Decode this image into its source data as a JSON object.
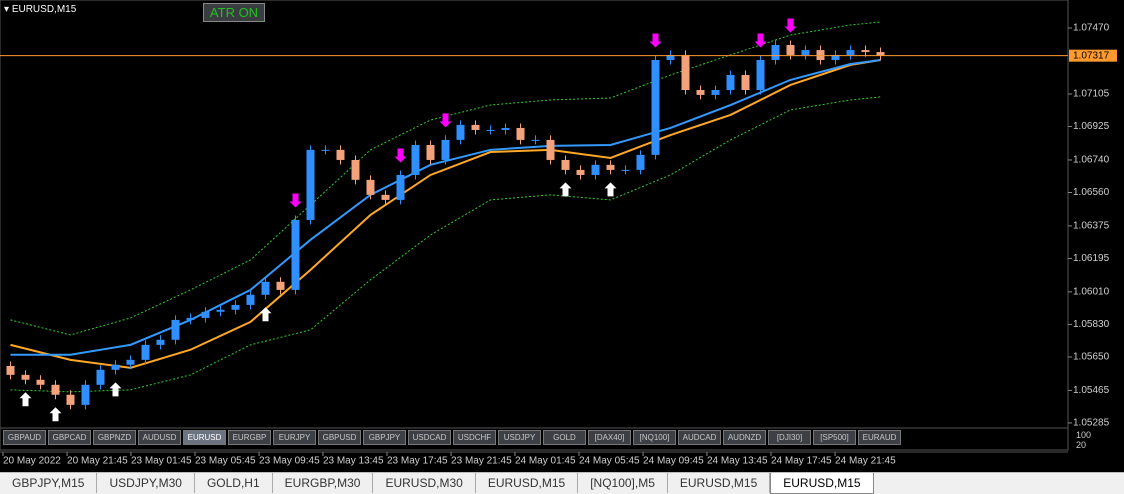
{
  "header": {
    "symbol": "EURUSD,M15",
    "button": "ATR ON"
  },
  "chart_data": {
    "type": "candlestick",
    "open": [
      1.056,
      1.05551,
      1.05524,
      1.05496,
      1.05441,
      1.05385,
      1.05496,
      1.05579,
      1.05607,
      1.05634,
      1.05717,
      1.05745,
      1.05855,
      1.05866,
      1.059,
      1.05911,
      1.05938,
      1.05994,
      1.06066,
      1.06021,
      1.06408,
      1.06796,
      1.06796,
      1.0674,
      1.0663,
      1.06547,
      1.06519,
      1.06657,
      1.06823,
      1.0674,
      1.06851,
      1.06934,
      1.06906,
      1.06906,
      1.06917,
      1.06851,
      1.06851,
      1.0674,
      1.06685,
      1.06657,
      1.06713,
      1.06685,
      1.06685,
      1.06768,
      1.07293,
      1.07321,
      1.07127,
      1.071,
      1.07127,
      1.0721,
      1.07127,
      1.07293,
      1.07376,
      1.07321,
      1.07348,
      1.07293,
      1.07321,
      1.07348,
      1.07337
    ],
    "high": [
      1.05625,
      1.05576,
      1.05549,
      1.05521,
      1.05466,
      1.05521,
      1.05604,
      1.05632,
      1.05659,
      1.05742,
      1.0577,
      1.0588,
      1.05891,
      1.05925,
      1.05936,
      1.05963,
      1.06019,
      1.06091,
      1.06091,
      1.06433,
      1.06821,
      1.06821,
      1.06821,
      1.06765,
      1.06655,
      1.06572,
      1.06682,
      1.06848,
      1.06848,
      1.06876,
      1.06959,
      1.06959,
      1.06931,
      1.06942,
      1.06942,
      1.06876,
      1.06876,
      1.06765,
      1.0671,
      1.06738,
      1.06738,
      1.0671,
      1.06793,
      1.07318,
      1.07346,
      1.07346,
      1.07152,
      1.07152,
      1.07235,
      1.07235,
      1.07318,
      1.07401,
      1.07401,
      1.07373,
      1.07373,
      1.07346,
      1.07373,
      1.07373,
      1.07362
    ],
    "low": [
      1.05526,
      1.05499,
      1.05471,
      1.05416,
      1.0536,
      1.0536,
      1.05471,
      1.05554,
      1.05582,
      1.05609,
      1.05692,
      1.0572,
      1.0583,
      1.05841,
      1.05875,
      1.05886,
      1.05913,
      1.05969,
      1.05996,
      1.05996,
      1.06383,
      1.06771,
      1.06715,
      1.06605,
      1.06522,
      1.06494,
      1.06494,
      1.06632,
      1.06715,
      1.06715,
      1.06826,
      1.06881,
      1.06881,
      1.06881,
      1.06826,
      1.06826,
      1.06715,
      1.0666,
      1.06632,
      1.06632,
      1.0666,
      1.0666,
      1.0666,
      1.06743,
      1.07268,
      1.07102,
      1.07075,
      1.07075,
      1.07102,
      1.07102,
      1.07102,
      1.07268,
      1.07296,
      1.07296,
      1.07268,
      1.07268,
      1.07296,
      1.07312,
      1.07292
    ],
    "close": [
      1.05551,
      1.05524,
      1.05496,
      1.05441,
      1.05385,
      1.05496,
      1.05579,
      1.05607,
      1.05634,
      1.05717,
      1.05745,
      1.05855,
      1.05866,
      1.059,
      1.05911,
      1.05938,
      1.05994,
      1.06066,
      1.06021,
      1.06408,
      1.06796,
      1.06796,
      1.0674,
      1.0663,
      1.06547,
      1.06519,
      1.06657,
      1.06823,
      1.0674,
      1.06851,
      1.06934,
      1.06906,
      1.06906,
      1.06917,
      1.06851,
      1.06851,
      1.0674,
      1.06685,
      1.06657,
      1.06713,
      1.06685,
      1.06685,
      1.06768,
      1.07293,
      1.07321,
      1.07127,
      1.071,
      1.07127,
      1.0721,
      1.07127,
      1.07293,
      1.07376,
      1.07321,
      1.07348,
      1.07293,
      1.07321,
      1.07348,
      1.07337,
      1.07317
    ],
    "up_color": "#2f8fff",
    "down_color": "#f4a27c",
    "lines": [
      {
        "color": "#32cd32",
        "style": "dashed",
        "x": [
          0,
          4,
          8,
          12,
          16,
          20,
          24,
          28,
          32,
          36,
          40,
          44,
          48,
          52,
          56,
          58
        ],
        "values": [
          1.05855,
          1.05772,
          1.05866,
          1.06021,
          1.06187,
          1.06491,
          1.06796,
          1.06961,
          1.07044,
          1.07072,
          1.07083,
          1.0721,
          1.07321,
          1.07431,
          1.07487,
          1.07503
        ]
      },
      {
        "color": "#32cd32",
        "style": "dashed",
        "x": [
          0,
          4,
          8,
          12,
          16,
          20,
          24,
          28,
          32,
          36,
          40,
          44,
          48,
          52,
          56,
          58
        ],
        "values": [
          1.05468,
          1.05457,
          1.05468,
          1.05551,
          1.05717,
          1.058,
          1.06077,
          1.06325,
          1.06519,
          1.06547,
          1.06519,
          1.06657,
          1.06851,
          1.07017,
          1.07072,
          1.07089
        ]
      },
      {
        "color": "#ffa726",
        "style": "solid",
        "x": [
          0,
          4,
          8,
          12,
          16,
          20,
          24,
          28,
          32,
          36,
          40,
          44,
          48,
          52,
          56,
          58
        ],
        "values": [
          1.05717,
          1.05634,
          1.0559,
          1.0569,
          1.05844,
          1.06132,
          1.06436,
          1.06657,
          1.06784,
          1.06796,
          1.06751,
          1.06878,
          1.06989,
          1.07155,
          1.07266,
          1.07293
        ]
      },
      {
        "color": "#3399ff",
        "style": "solid",
        "x": [
          0,
          4,
          8,
          12,
          16,
          20,
          24,
          28,
          32,
          36,
          40,
          44,
          48,
          52,
          56,
          58
        ],
        "values": [
          1.05662,
          1.05662,
          1.05717,
          1.05855,
          1.06021,
          1.06298,
          1.06547,
          1.06713,
          1.06796,
          1.06818,
          1.06823,
          1.06917,
          1.07044,
          1.07183,
          1.07271,
          1.07293
        ]
      }
    ],
    "signals": {
      "up": [
        1,
        3,
        7,
        17,
        37,
        40
      ],
      "down": [
        19,
        26,
        29,
        43,
        50,
        52
      ],
      "up_color": "#ffffff",
      "down_color": "#ff00ff"
    },
    "last_price": {
      "value": 1.07317,
      "label": "1.07317"
    },
    "ylim": [
      1.05257,
      1.07625
    ],
    "yticks": [
      {
        "value": 1.05285,
        "label": "1.05285"
      },
      {
        "value": 1.05465,
        "label": "1.05465"
      },
      {
        "value": 1.0565,
        "label": "1.05650"
      },
      {
        "value": 1.0583,
        "label": "1.05830"
      },
      {
        "value": 1.0601,
        "label": "1.06010"
      },
      {
        "value": 1.06195,
        "label": "1.06195"
      },
      {
        "value": 1.06375,
        "label": "1.06375"
      },
      {
        "value": 1.0656,
        "label": "1.06560"
      },
      {
        "value": 1.0674,
        "label": "1.06740"
      },
      {
        "value": 1.06925,
        "label": "1.06925"
      },
      {
        "value": 1.07105,
        "label": "1.07105"
      },
      {
        "value": 1.0747,
        "label": "1.07470"
      }
    ],
    "xticks": [
      {
        "value": 0,
        "label": "20 May 2022"
      },
      {
        "value": 4.27,
        "label": "20 May 21:45"
      },
      {
        "value": 8.53,
        "label": "23 May 01:45"
      },
      {
        "value": 12.8,
        "label": "23 May 05:45"
      },
      {
        "value": 17.07,
        "label": "23 May 09:45"
      },
      {
        "value": 21.33,
        "label": "23 May 13:45"
      },
      {
        "value": 25.6,
        "label": "23 May 17:45"
      },
      {
        "value": 29.87,
        "label": "23 May 21:45"
      },
      {
        "value": 34.13,
        "label": "24 May 01:45"
      },
      {
        "value": 38.4,
        "label": "24 May 05:45"
      },
      {
        "value": 42.67,
        "label": "24 May 09:45"
      },
      {
        "value": 46.93,
        "label": "24 May 13:45"
      },
      {
        "value": 51.2,
        "label": "24 May 17:45"
      },
      {
        "value": 55.47,
        "label": "24 May 21:45"
      }
    ]
  },
  "symbols": [
    "GBPAUD",
    "GBPCAD",
    "GBPNZD",
    "AUDUSD",
    "EURUSD",
    "EURGBP",
    "EURJPY",
    "GBPUSD",
    "GBPJPY",
    "USDCAD",
    "USDCHF",
    "USDJPY",
    "GOLD",
    "[DAX40]",
    "[NQ100]",
    "AUDCAD",
    "AUDNZD",
    "[DJI30]",
    "[SP500]",
    "EURAUD"
  ],
  "active_symbol": 4,
  "subwindow_labels": [
    "100",
    "20"
  ],
  "tabs": [
    "GBPJPY,M15",
    "USDJPY,M30",
    "GOLD,H1",
    "EURGBP,M30",
    "EURUSD,M30",
    "EURUSD,M15",
    "[NQ100],M5",
    "EURUSD,M15",
    "EURUSD,M15"
  ],
  "active_tab": 8
}
